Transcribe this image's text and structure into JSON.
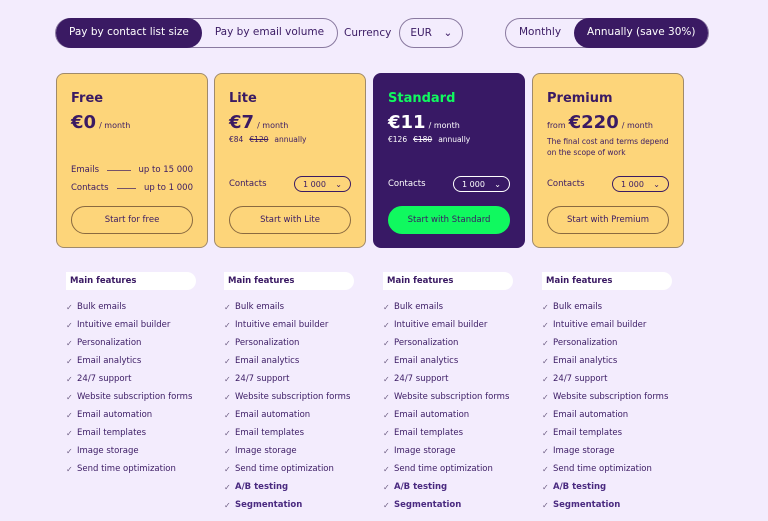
{
  "top": {
    "pay_options": [
      "Pay by contact list size",
      "Pay by email volume"
    ],
    "pay_selected": 0,
    "currency_label": "Currency",
    "currency_value": "EUR",
    "billing_options": [
      "Monthly",
      "Annually (save 30%)"
    ],
    "billing_selected": 1
  },
  "colors": {
    "background": "#f3ecfd",
    "primary": "#3a1a63",
    "card": "#fdd57a",
    "accent": "#10f95f"
  },
  "plans": [
    {
      "name": "Free",
      "price": "€0",
      "per": "/ month",
      "rows": [
        {
          "label": "Emails",
          "value": "up to 15 000"
        },
        {
          "label": "Contacts",
          "value": "up to 1 000"
        }
      ],
      "cta": "Start for free"
    },
    {
      "name": "Lite",
      "price": "€7",
      "per": "/ month",
      "annual": "€84",
      "annual_old": "€120",
      "annual_label": "annually",
      "contacts_label": "Contacts",
      "contacts_value": "1 000",
      "cta": "Start with Lite"
    },
    {
      "name": "Standard",
      "price": "€11",
      "per": "/ month",
      "annual": "€126",
      "annual_old": "€180",
      "annual_label": "annually",
      "contacts_label": "Contacts",
      "contacts_value": "1 000",
      "cta": "Start with Standard",
      "highlight": true
    },
    {
      "name": "Premium",
      "from": "from",
      "price": "€220",
      "per": "/ month",
      "note": "The final cost and terms depend on the scope of work",
      "contacts_label": "Contacts",
      "contacts_value": "1 000",
      "cta": "Start with Premium"
    }
  ],
  "features": {
    "header": "Main features",
    "common": [
      "Bulk emails",
      "Intuitive email builder",
      "Personalization",
      "Email analytics",
      "24/7 support",
      "Website subscription forms",
      "Email automation",
      "Email templates",
      "Image storage",
      "Send time optimization"
    ],
    "extra": [
      "A/B testing",
      "Segmentation"
    ],
    "extra_plans": [
      1,
      2,
      3
    ]
  }
}
